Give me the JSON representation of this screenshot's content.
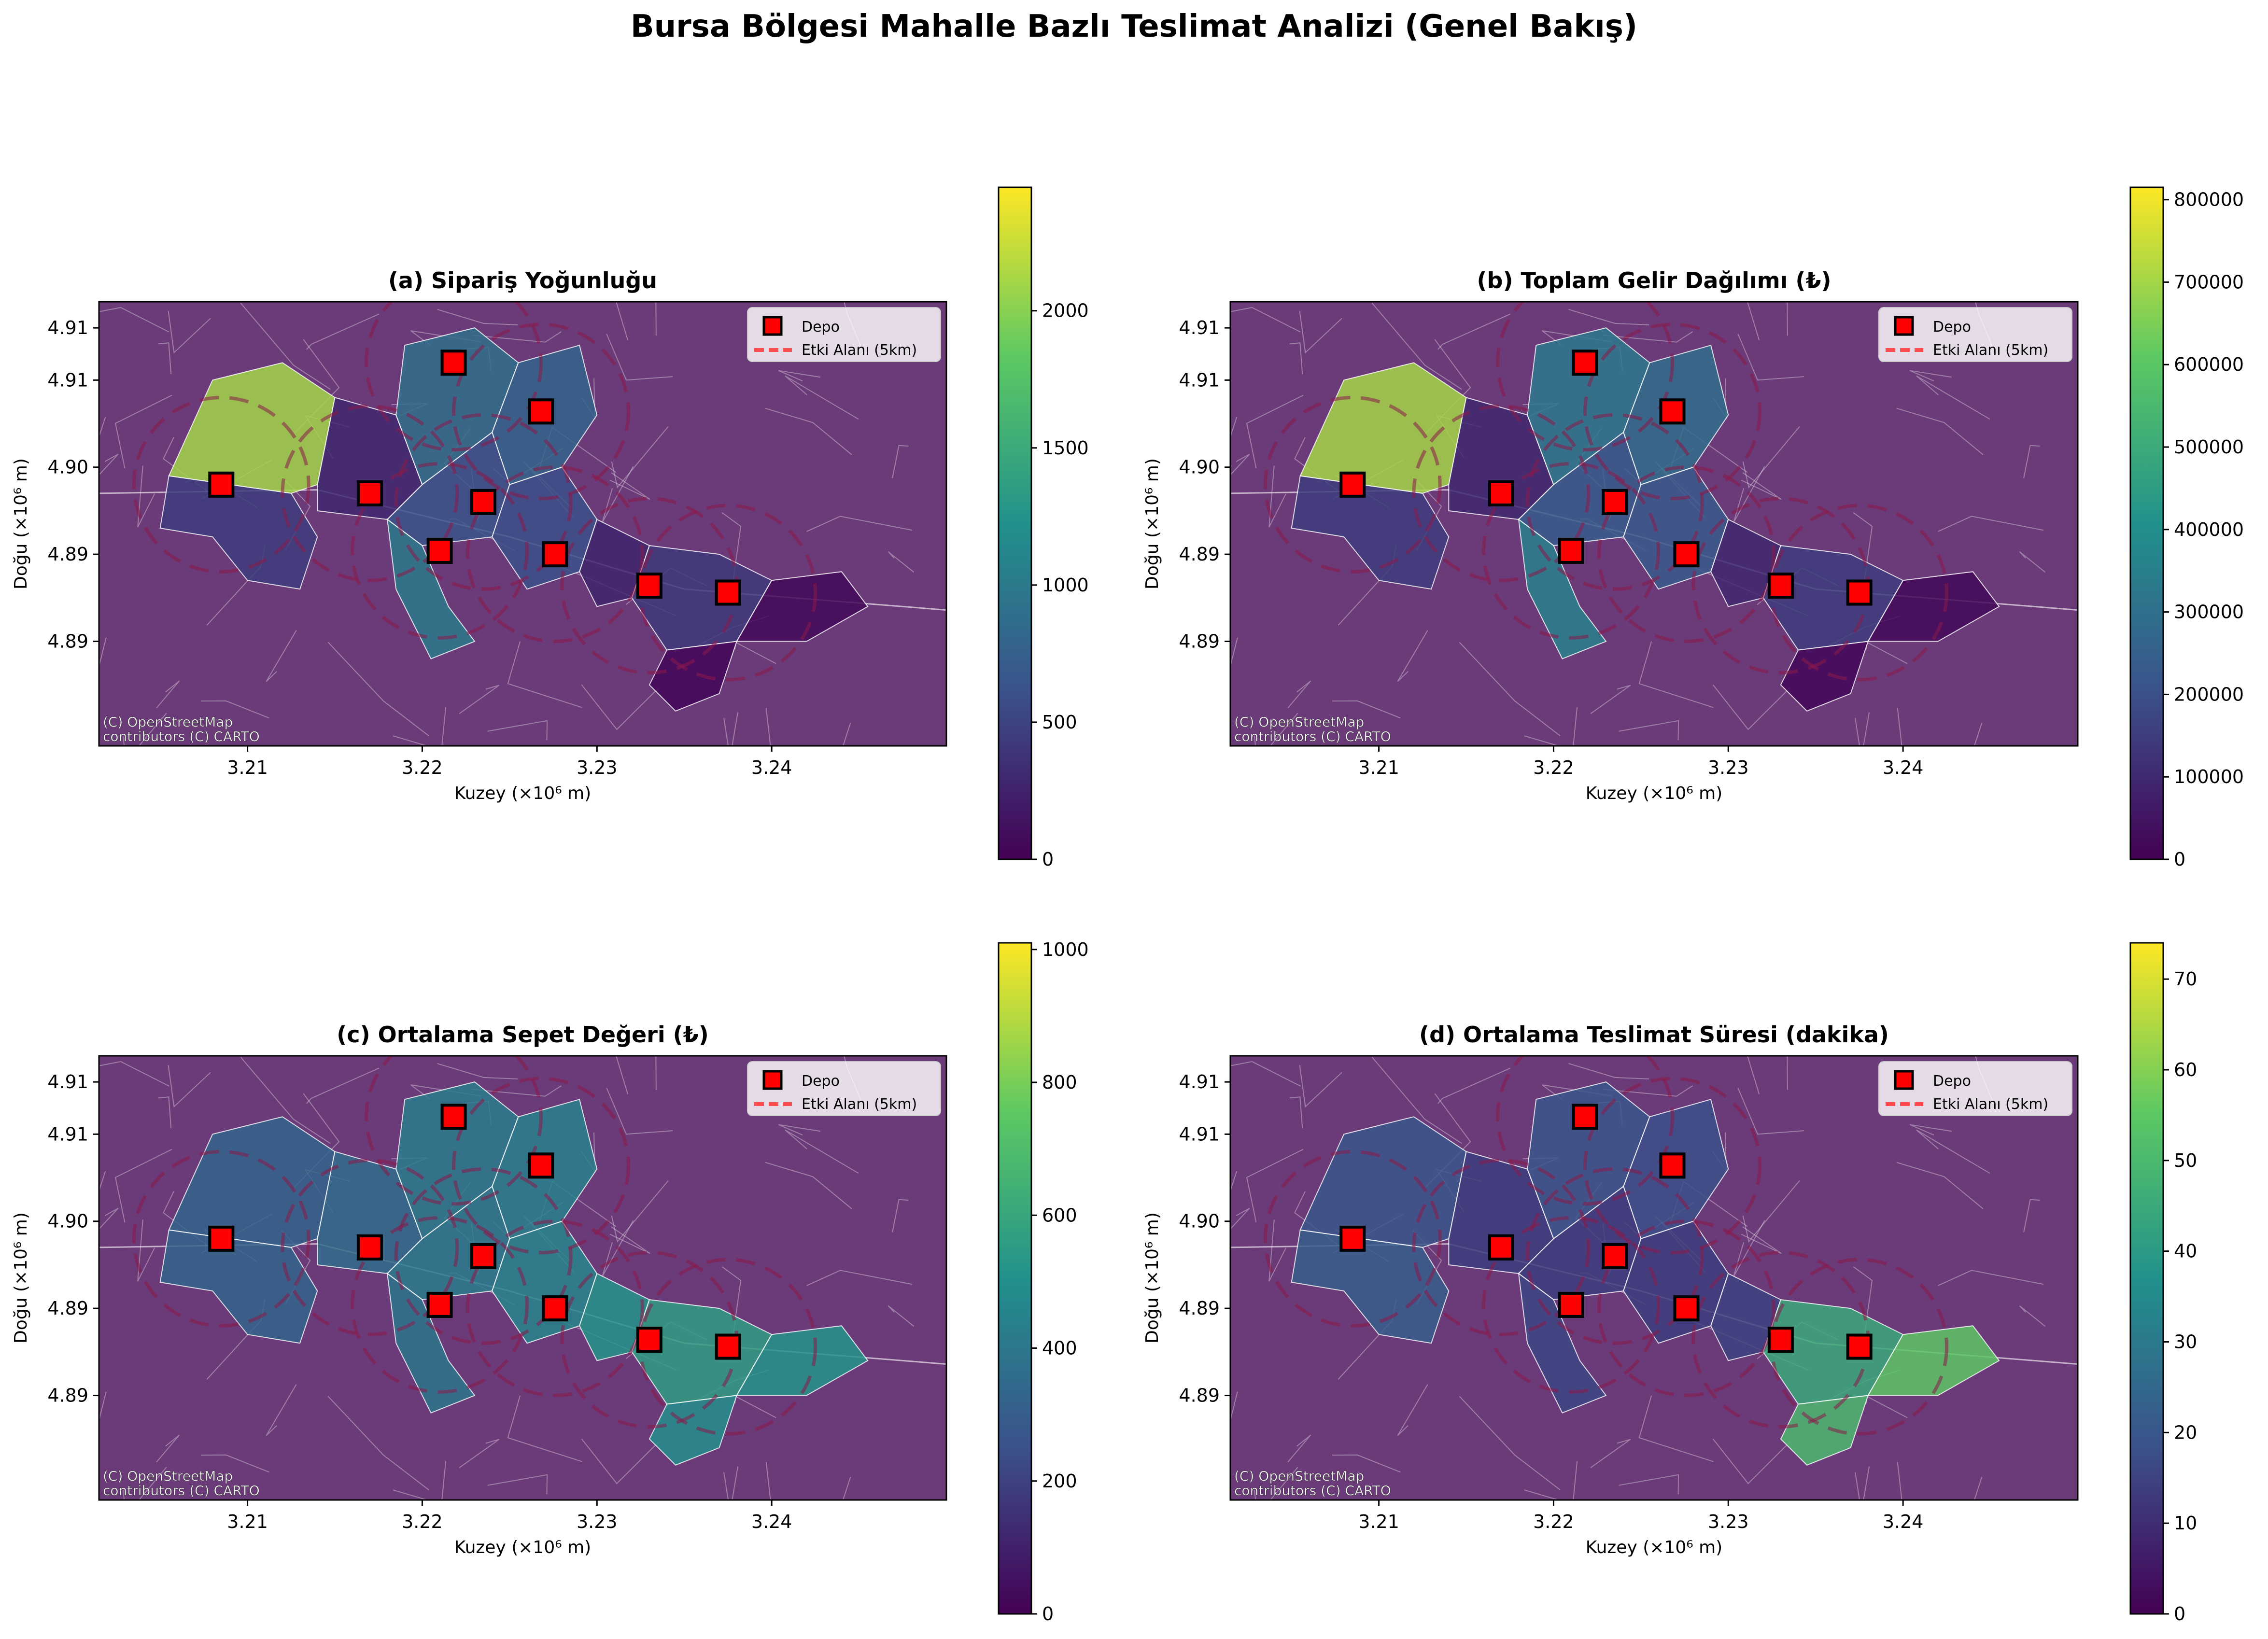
{
  "figure": {
    "title": "Bursa Bölgesi Mahalle Bazlı Teslimat Analizi (Genel Bakış)"
  },
  "common": {
    "xlabel": "Kuzey (×10⁶ m)",
    "ylabel": "Doğu (×10⁶ m)",
    "x_ticks": [
      "3.21",
      "3.22",
      "3.23",
      "3.24"
    ],
    "y_ticks": [
      "4.91",
      "4.91",
      "4.90",
      "4.89",
      "4.89"
    ],
    "attribution": [
      "(C) OpenStreetMap",
      "contributors (C) CARTO"
    ],
    "legend": {
      "depot": "Depo",
      "radius": "Etki Alanı (5km)"
    },
    "colors": {
      "background": "#6b3a78",
      "depot": "#ff0000",
      "radius": "#8b1a4a",
      "borders": "#ffffff"
    }
  },
  "panels": [
    {
      "title": "(a) Sipariş Yoğunluğu",
      "colorbar": {
        "ticks": [
          "0",
          "500",
          "1000",
          "1500",
          "2000"
        ],
        "max_value": 2450
      },
      "metric": "orders"
    },
    {
      "title": "(b) Toplam Gelir Dağılımı (₺)",
      "colorbar": {
        "ticks": [
          "0",
          "100000",
          "200000",
          "300000",
          "400000",
          "500000",
          "600000",
          "700000",
          "800000"
        ],
        "max_value": 815000
      },
      "metric": "revenue"
    },
    {
      "title": "(c) Ortalama Sepet Değeri (₺)",
      "colorbar": {
        "ticks": [
          "0",
          "200",
          "400",
          "600",
          "800",
          "1000"
        ],
        "max_value": 1010
      },
      "metric": "basket"
    },
    {
      "title": "(d) Ortalama Teslimat Süresi (dakika)",
      "colorbar": {
        "ticks": [
          "0",
          "10",
          "20",
          "30",
          "40",
          "50",
          "60",
          "70"
        ],
        "max_value": 74
      },
      "metric": "time"
    }
  ],
  "depots": [
    {
      "x": 3.2085,
      "y": 4.899
    },
    {
      "x": 3.217,
      "y": 4.8985
    },
    {
      "x": 3.221,
      "y": 4.8952
    },
    {
      "x": 3.2218,
      "y": 4.906
    },
    {
      "x": 3.2235,
      "y": 4.898
    },
    {
      "x": 3.2268,
      "y": 4.9032
    },
    {
      "x": 3.2276,
      "y": 4.895
    },
    {
      "x": 3.233,
      "y": 4.8932
    },
    {
      "x": 3.2375,
      "y": 4.8928
    }
  ],
  "regions": [
    {
      "name": "west-large",
      "outline": [
        [
          3.2055,
          4.8995
        ],
        [
          3.208,
          4.905
        ],
        [
          3.212,
          4.906
        ],
        [
          3.215,
          4.904
        ],
        [
          3.214,
          4.899
        ],
        [
          3.2125,
          4.8985
        ]
      ],
      "orders": 2100,
      "revenue": 700000,
      "basket": 330,
      "time": 20
    },
    {
      "name": "west-sw",
      "outline": [
        [
          3.2055,
          4.8995
        ],
        [
          3.2125,
          4.8985
        ],
        [
          3.214,
          4.896
        ],
        [
          3.213,
          4.893
        ],
        [
          3.21,
          4.8935
        ],
        [
          3.208,
          4.896
        ],
        [
          3.205,
          4.8965
        ]
      ],
      "orders": 450,
      "revenue": 150000,
      "basket": 330,
      "time": 22
    },
    {
      "name": "center-west",
      "outline": [
        [
          3.214,
          4.899
        ],
        [
          3.215,
          4.904
        ],
        [
          3.2185,
          4.903
        ],
        [
          3.22,
          4.899
        ],
        [
          3.218,
          4.897
        ],
        [
          3.214,
          4.8975
        ]
      ],
      "orders": 300,
      "revenue": 100000,
      "basket": 360,
      "time": 14
    },
    {
      "name": "north-center",
      "outline": [
        [
          3.2185,
          4.903
        ],
        [
          3.219,
          4.907
        ],
        [
          3.223,
          4.908
        ],
        [
          3.2255,
          4.906
        ],
        [
          3.224,
          4.902
        ],
        [
          3.22,
          4.899
        ]
      ],
      "orders": 900,
      "revenue": 330000,
      "basket": 420,
      "time": 20
    },
    {
      "name": "north-east",
      "outline": [
        [
          3.2255,
          4.906
        ],
        [
          3.229,
          4.907
        ],
        [
          3.23,
          4.903
        ],
        [
          3.228,
          4.9
        ],
        [
          3.225,
          4.899
        ],
        [
          3.224,
          4.902
        ]
      ],
      "orders": 800,
      "revenue": 290000,
      "basket": 440,
      "time": 18
    },
    {
      "name": "mid",
      "outline": [
        [
          3.218,
          4.897
        ],
        [
          3.22,
          4.899
        ],
        [
          3.224,
          4.902
        ],
        [
          3.225,
          4.899
        ],
        [
          3.224,
          4.896
        ],
        [
          3.22,
          4.8955
        ]
      ],
      "orders": 650,
      "revenue": 240000,
      "basket": 420,
      "time": 14
    },
    {
      "name": "south-center",
      "outline": [
        [
          3.218,
          4.897
        ],
        [
          3.22,
          4.8955
        ],
        [
          3.2215,
          4.892
        ],
        [
          3.223,
          4.89
        ],
        [
          3.2205,
          4.889
        ],
        [
          3.2185,
          4.893
        ]
      ],
      "orders": 1000,
      "revenue": 360000,
      "basket": 400,
      "time": 16
    },
    {
      "name": "mid-east",
      "outline": [
        [
          3.224,
          4.896
        ],
        [
          3.225,
          4.899
        ],
        [
          3.228,
          4.9
        ],
        [
          3.23,
          4.897
        ],
        [
          3.229,
          4.894
        ],
        [
          3.226,
          4.893
        ]
      ],
      "orders": 600,
      "revenue": 230000,
      "basket": 460,
      "time": 14
    },
    {
      "name": "east-link",
      "outline": [
        [
          3.229,
          4.894
        ],
        [
          3.23,
          4.897
        ],
        [
          3.233,
          4.8955
        ],
        [
          3.232,
          4.8925
        ],
        [
          3.23,
          4.892
        ]
      ],
      "orders": 280,
      "revenue": 100000,
      "basket": 520,
      "time": 15
    },
    {
      "name": "east-core",
      "outline": [
        [
          3.232,
          4.8925
        ],
        [
          3.233,
          4.8955
        ],
        [
          3.237,
          4.895
        ],
        [
          3.24,
          4.8935
        ],
        [
          3.238,
          4.89
        ],
        [
          3.234,
          4.8895
        ]
      ],
      "orders": 420,
      "revenue": 150000,
      "basket": 560,
      "time": 45
    },
    {
      "name": "east-far",
      "outline": [
        [
          3.24,
          4.8935
        ],
        [
          3.244,
          4.894
        ],
        [
          3.2455,
          4.892
        ],
        [
          3.242,
          4.89
        ],
        [
          3.238,
          4.89
        ]
      ],
      "orders": 60,
      "revenue": 20000,
      "basket": 520,
      "time": 55
    },
    {
      "name": "east-south",
      "outline": [
        [
          3.234,
          4.8895
        ],
        [
          3.238,
          4.89
        ],
        [
          3.237,
          4.887
        ],
        [
          3.2345,
          4.886
        ],
        [
          3.233,
          4.8875
        ]
      ],
      "orders": 40,
      "revenue": 15000,
      "basket": 500,
      "time": 50
    }
  ]
}
